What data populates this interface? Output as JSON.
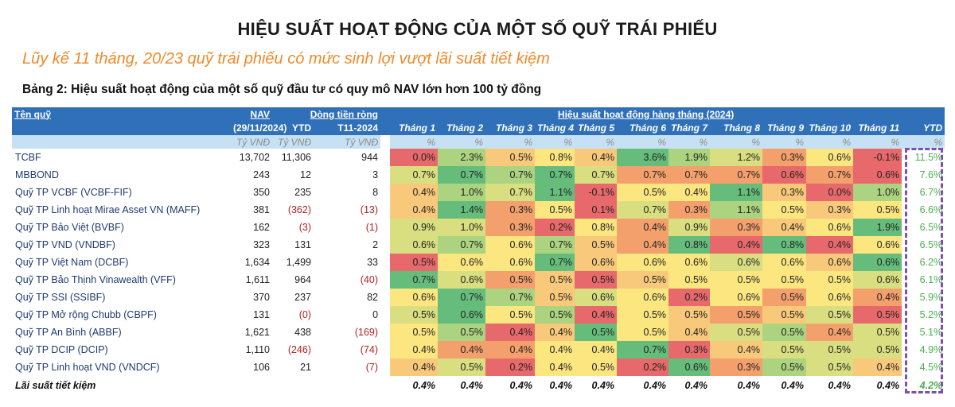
{
  "title": "HIỆU SUẤT HOẠT ĐỘNG CỦA MỘT SỐ QUỸ TRÁI PHIẾU",
  "subtitle": "Lũy kế 11 tháng, 20/23 quỹ trái phiếu có mức sinh lợi vượt lãi suất tiết kiệm",
  "table_title": "Bảng 2: Hiệu suất hoạt động của một số quỹ đầu tư có quy mô NAV lớn hơn 100 tỷ đồng",
  "colors": {
    "R": "#e8696b",
    "O": "#f3a06c",
    "L": "#f8c97a",
    "Y": "#fbe680",
    "V": "#d9df80",
    "A": "#acd37f",
    "G": "#66bd7b",
    "header": "#2f70b8",
    "subheader": "#c7e1f4",
    "ytd_text": "#4caf50",
    "highlight_box": "#7d4fb0"
  },
  "header": {
    "fund_name": "Tên quỹ",
    "nav": "NAV",
    "nav_date": "(29/11/2024)",
    "net_flow": "Dòng tiền ròng",
    "flow_ytd": "YTD",
    "flow_t11": "T11-2024",
    "performance": "Hiệu suất hoạt động hàng tháng (2024)",
    "months": [
      "Tháng 1",
      "Tháng 2",
      "Tháng 3",
      "Tháng 4",
      "Tháng 5",
      "Tháng 6",
      "Tháng 7",
      "Tháng 8",
      "Tháng 9",
      "Tháng 10",
      "Tháng 11"
    ],
    "ytd": "YTD",
    "unit_money": "Tỷ VNĐ",
    "unit_pct": "%"
  },
  "rows": [
    {
      "name": "TCBF",
      "nav": "13,702",
      "flow_ytd": "11,306",
      "flow_t11": "944",
      "months": [
        "0.0%",
        "2.3%",
        "0.5%",
        "0.8%",
        "0.4%",
        "3.6%",
        "1.9%",
        "1.2%",
        "0.3%",
        "0.6%",
        "-0.1%"
      ],
      "heat": [
        "R",
        "A",
        "L",
        "Y",
        "L",
        "G",
        "A",
        "V",
        "O",
        "Y",
        "R"
      ],
      "ytd": "11.5%"
    },
    {
      "name": "MBBOND",
      "nav": "243",
      "flow_ytd": "12",
      "flow_t11": "3",
      "months": [
        "0.7%",
        "0.7%",
        "0.7%",
        "0.7%",
        "0.7%",
        "0.7%",
        "0.7%",
        "0.7%",
        "0.6%",
        "0.7%",
        "0.6%"
      ],
      "heat": [
        "V",
        "G",
        "A",
        "G",
        "V",
        "O",
        "O",
        "O",
        "R",
        "O",
        "R"
      ],
      "ytd": "7.6%"
    },
    {
      "name": "Quỹ TP VCBF (VCBF-FIF)",
      "nav": "350",
      "flow_ytd": "235",
      "flow_t11": "8",
      "months": [
        "0.4%",
        "1.0%",
        "0.7%",
        "1.1%",
        "-0.1%",
        "0.5%",
        "0.4%",
        "1.1%",
        "0.3%",
        "0.0%",
        "1.0%"
      ],
      "heat": [
        "L",
        "A",
        "V",
        "G",
        "R",
        "Y",
        "Y",
        "G",
        "L",
        "R",
        "A"
      ],
      "ytd": "6.7%"
    },
    {
      "name": "Quỹ TP Linh hoạt Mirae Asset VN (MAFF)",
      "nav": "381",
      "flow_ytd": "(362)",
      "flow_t11": "(13)",
      "months": [
        "0.4%",
        "1.4%",
        "0.3%",
        "0.5%",
        "0.1%",
        "0.7%",
        "0.3%",
        "1.1%",
        "0.5%",
        "0.3%",
        "0.5%"
      ],
      "heat": [
        "L",
        "G",
        "O",
        "Y",
        "R",
        "V",
        "O",
        "A",
        "Y",
        "L",
        "Y"
      ],
      "ytd": "6.6%"
    },
    {
      "name": "Quỹ TP Bảo Việt (BVBF)",
      "nav": "162",
      "flow_ytd": "(3)",
      "flow_t11": "(1)",
      "months": [
        "0.9%",
        "1.0%",
        "0.3%",
        "0.2%",
        "0.8%",
        "0.4%",
        "0.9%",
        "0.3%",
        "0.4%",
        "0.6%",
        "1.9%"
      ],
      "heat": [
        "V",
        "V",
        "O",
        "R",
        "Y",
        "O",
        "V",
        "O",
        "L",
        "Y",
        "G"
      ],
      "ytd": "6.5%"
    },
    {
      "name": "Quỹ TP VND (VNDBF)",
      "nav": "323",
      "flow_ytd": "131",
      "flow_t11": "2",
      "months": [
        "0.6%",
        "0.7%",
        "0.6%",
        "0.7%",
        "0.5%",
        "0.4%",
        "0.8%",
        "0.4%",
        "0.8%",
        "0.4%",
        "0.6%"
      ],
      "heat": [
        "V",
        "A",
        "Y",
        "A",
        "L",
        "O",
        "G",
        "R",
        "G",
        "R",
        "Y"
      ],
      "ytd": "6.5%"
    },
    {
      "name": "Quỹ TP Việt Nam (DCBF)",
      "nav": "1,634",
      "flow_ytd": "1,499",
      "flow_t11": "33",
      "months": [
        "0.5%",
        "0.6%",
        "0.6%",
        "0.7%",
        "0.6%",
        "0.6%",
        "0.6%",
        "0.6%",
        "0.6%",
        "0.6%",
        "0.6%"
      ],
      "heat": [
        "R",
        "Y",
        "Y",
        "G",
        "L",
        "Y",
        "Y",
        "V",
        "Y",
        "L",
        "G"
      ],
      "ytd": "6.2%"
    },
    {
      "name": "Quỹ TP Bảo Thịnh Vinawealth (VFF)",
      "nav": "1,611",
      "flow_ytd": "964",
      "flow_t11": "(40)",
      "months": [
        "0.7%",
        "0.6%",
        "0.5%",
        "0.5%",
        "0.5%",
        "0.5%",
        "0.5%",
        "0.5%",
        "0.5%",
        "0.5%",
        "0.6%"
      ],
      "heat": [
        "G",
        "V",
        "O",
        "L",
        "R",
        "L",
        "Y",
        "Y",
        "Y",
        "Y",
        "V"
      ],
      "ytd": "6.1%"
    },
    {
      "name": "Quỹ TP SSI (SSIBF)",
      "nav": "370",
      "flow_ytd": "237",
      "flow_t11": "82",
      "months": [
        "0.6%",
        "0.7%",
        "0.7%",
        "0.5%",
        "0.6%",
        "0.6%",
        "0.2%",
        "0.6%",
        "0.5%",
        "0.6%",
        "0.4%"
      ],
      "heat": [
        "Y",
        "G",
        "A",
        "L",
        "V",
        "Y",
        "R",
        "Y",
        "O",
        "Y",
        "O"
      ],
      "ytd": "5.9%"
    },
    {
      "name": "Quỹ TP Mở rộng Chubb (CBPF)",
      "nav": "131",
      "flow_ytd": "(0)",
      "flow_t11": "0",
      "months": [
        "0.5%",
        "0.6%",
        "0.5%",
        "0.5%",
        "0.4%",
        "0.5%",
        "0.5%",
        "0.5%",
        "0.5%",
        "0.5%",
        "0.5%"
      ],
      "heat": [
        "V",
        "G",
        "Y",
        "A",
        "R",
        "Y",
        "L",
        "O",
        "L",
        "V",
        "R"
      ],
      "ytd": "5.2%"
    },
    {
      "name": "Quỹ TP An Bình (ABBF)",
      "nav": "1,621",
      "flow_ytd": "438",
      "flow_t11": "(169)",
      "months": [
        "0.5%",
        "0.5%",
        "0.4%",
        "0.4%",
        "0.5%",
        "0.5%",
        "0.4%",
        "0.5%",
        "0.5%",
        "0.4%",
        "0.5%"
      ],
      "heat": [
        "Y",
        "A",
        "R",
        "L",
        "G",
        "Y",
        "L",
        "V",
        "A",
        "O",
        "V"
      ],
      "ytd": "5.1%"
    },
    {
      "name": "Quỹ TP DCIP (DCIP)",
      "nav": "1,110",
      "flow_ytd": "(246)",
      "flow_t11": "(74)",
      "months": [
        "0.4%",
        "0.4%",
        "0.4%",
        "0.4%",
        "0.4%",
        "0.7%",
        "0.3%",
        "0.4%",
        "0.5%",
        "0.5%",
        "0.5%"
      ],
      "heat": [
        "Y",
        "O",
        "O",
        "Y",
        "Y",
        "G",
        "R",
        "L",
        "V",
        "V",
        "V"
      ],
      "ytd": "4.9%"
    },
    {
      "name": "Quỹ TP Linh hoạt VND (VNDCF)",
      "nav": "106",
      "flow_ytd": "21",
      "flow_t11": "(7)",
      "months": [
        "0.4%",
        "0.5%",
        "0.2%",
        "0.4%",
        "0.5%",
        "0.2%",
        "0.6%",
        "0.3%",
        "0.5%",
        "0.5%",
        "0.4%"
      ],
      "heat": [
        "L",
        "V",
        "R",
        "Y",
        "Y",
        "R",
        "G",
        "O",
        "A",
        "V",
        "L"
      ],
      "ytd": "4.5%"
    }
  ],
  "savings": {
    "name": "Lãi suất tiết kiệm",
    "months": [
      "0.4%",
      "0.4%",
      "0.4%",
      "0.4%",
      "0.4%",
      "0.4%",
      "0.4%",
      "0.4%",
      "0.4%",
      "0.4%",
      "0.4%"
    ],
    "ytd": "4.2%"
  }
}
